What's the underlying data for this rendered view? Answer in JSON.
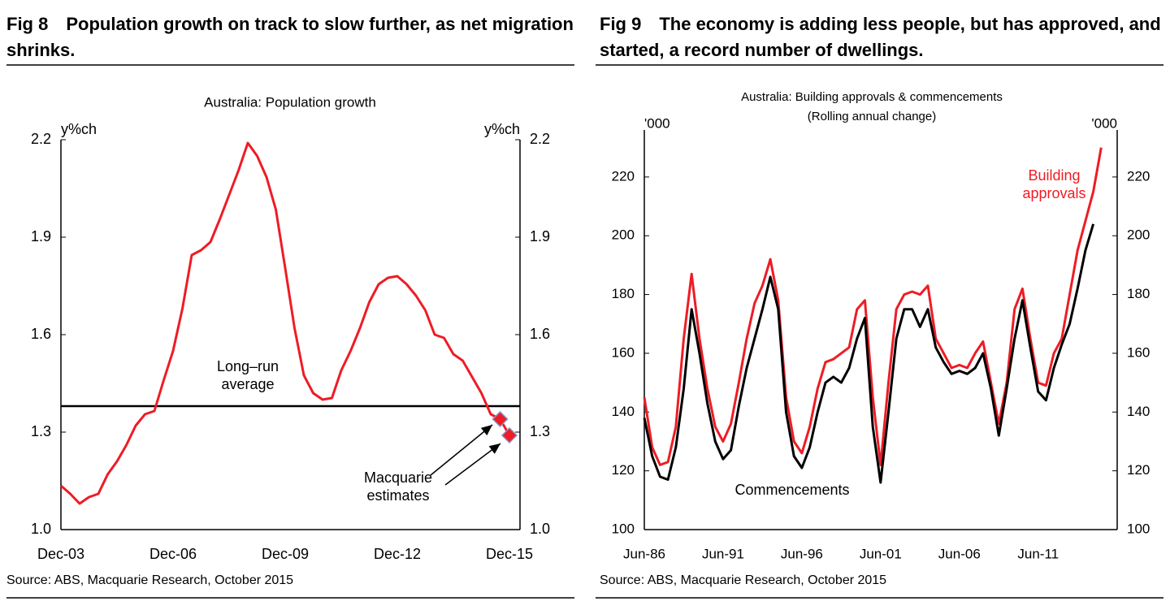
{
  "chart_data": [
    {
      "type": "line",
      "fig": "Fig 8",
      "heading": "Population growth on track to slow further, as net migration shrinks.",
      "title": "Australia: Population growth",
      "ylabel": "y%ch",
      "y2label": "y%ch",
      "categories": [
        "Dec-03",
        null,
        null,
        null,
        null,
        null,
        null,
        null,
        null,
        null,
        null,
        null,
        "Dec-06",
        null,
        null,
        null,
        null,
        null,
        null,
        null,
        null,
        null,
        null,
        null,
        "Dec-09",
        null,
        null,
        null,
        null,
        null,
        null,
        null,
        null,
        null,
        null,
        null,
        "Dec-12",
        null,
        null,
        null,
        null,
        null,
        null,
        null,
        null,
        null,
        null,
        null,
        "Dec-15"
      ],
      "series": [
        {
          "color": "#ee1c25",
          "values": [
            1.135,
            1.11,
            1.08,
            1.1,
            1.11,
            1.17,
            1.21,
            1.26,
            1.32,
            1.355,
            1.365,
            1.46,
            1.55,
            1.68,
            1.845,
            1.86,
            1.885,
            1.955,
            2.03,
            2.105,
            2.19,
            2.15,
            2.085,
            1.985,
            1.805,
            1.62,
            1.475,
            1.42,
            1.4,
            1.405,
            1.49,
            1.55,
            1.62,
            1.7,
            1.755,
            1.775,
            1.78,
            1.755,
            1.72,
            1.675,
            1.6,
            1.59,
            1.54,
            1.52,
            1.47,
            1.42,
            1.355,
            1.34,
            1.29
          ]
        },
        {
          "color": "#ee1c25",
          "marker": "diamond",
          "values": [
            null,
            null,
            null,
            null,
            null,
            null,
            null,
            null,
            null,
            null,
            null,
            null,
            null,
            null,
            null,
            null,
            null,
            null,
            null,
            null,
            null,
            null,
            null,
            null,
            null,
            null,
            null,
            null,
            null,
            null,
            null,
            null,
            null,
            null,
            null,
            null,
            null,
            null,
            null,
            null,
            null,
            null,
            null,
            null,
            null,
            null,
            null,
            1.34,
            1.29
          ]
        }
      ],
      "reference_lines": [
        {
          "value": 1.38,
          "label": "Long–run average"
        }
      ],
      "annotations": [
        "Macquarie estimates"
      ],
      "ylim": [
        1.0,
        2.2
      ],
      "yticks": [
        {
          "value": 1.0,
          "label": "1.0"
        },
        1.3,
        1.6,
        1.9,
        2.2
      ],
      "y2lim": [
        1.0,
        2.2
      ],
      "y2ticks": [
        {
          "value": 1.0,
          "label": "1.0"
        },
        1.3,
        1.6,
        1.9,
        2.2
      ],
      "source": "Source: ABS, Macquarie Research, October 2015"
    },
    {
      "type": "line",
      "fig": "Fig 9",
      "heading": "The economy is adding less people, but has approved, and started, a record number of dwellings.",
      "title": "Australia: Building approvals & commencements",
      "subtitle": "(Rolling annual change)",
      "ylabel": "'000",
      "y2label": "'000",
      "categories": [
        "Jun-86",
        null,
        null,
        null,
        null,
        null,
        null,
        null,
        null,
        null,
        "Jun-91",
        null,
        null,
        null,
        null,
        null,
        null,
        null,
        null,
        null,
        "Jun-96",
        null,
        null,
        null,
        null,
        null,
        null,
        null,
        null,
        null,
        "Jun-01",
        null,
        null,
        null,
        null,
        null,
        null,
        null,
        null,
        null,
        "Jun-06",
        null,
        null,
        null,
        null,
        null,
        null,
        null,
        null,
        null,
        "Jun-11",
        null,
        null,
        null,
        null,
        null,
        null,
        null,
        null,
        null
      ],
      "series": [
        {
          "name": "Building approvals",
          "color": "#ee1c25",
          "values": [
            145,
            128,
            122,
            123,
            135,
            165,
            187,
            165,
            148,
            135,
            130,
            136,
            150,
            165,
            177,
            183,
            192,
            178,
            145,
            130,
            126,
            135,
            148,
            157,
            158,
            160,
            162,
            175,
            178,
            145,
            122,
            150,
            175,
            180,
            181,
            180,
            183,
            165,
            160,
            155,
            156,
            155,
            160,
            164,
            150,
            136,
            150,
            175,
            182,
            165,
            150,
            149,
            160,
            165,
            180,
            195,
            205,
            215,
            230,
            null
          ]
        },
        {
          "name": "Commencements",
          "color": "#000000",
          "values": [
            138,
            125,
            118,
            117,
            128,
            148,
            175,
            160,
            143,
            130,
            124,
            127,
            142,
            155,
            165,
            175,
            186,
            175,
            140,
            125,
            121,
            128,
            140,
            150,
            152,
            150,
            155,
            165,
            172,
            135,
            116,
            140,
            165,
            175,
            175,
            169,
            175,
            162,
            157,
            153,
            154,
            153,
            155,
            160,
            148,
            132,
            148,
            165,
            178,
            162,
            147,
            144,
            155,
            163,
            170,
            182,
            195,
            204,
            null,
            null
          ]
        }
      ],
      "ylim": [
        100,
        236
      ],
      "yticks": [
        100,
        120,
        140,
        160,
        180,
        200,
        220
      ],
      "y2lim": [
        100,
        236
      ],
      "y2ticks": [
        100,
        120,
        140,
        160,
        180,
        200,
        220
      ],
      "source": "Source: ABS, Macquarie Research, October 2015"
    }
  ]
}
